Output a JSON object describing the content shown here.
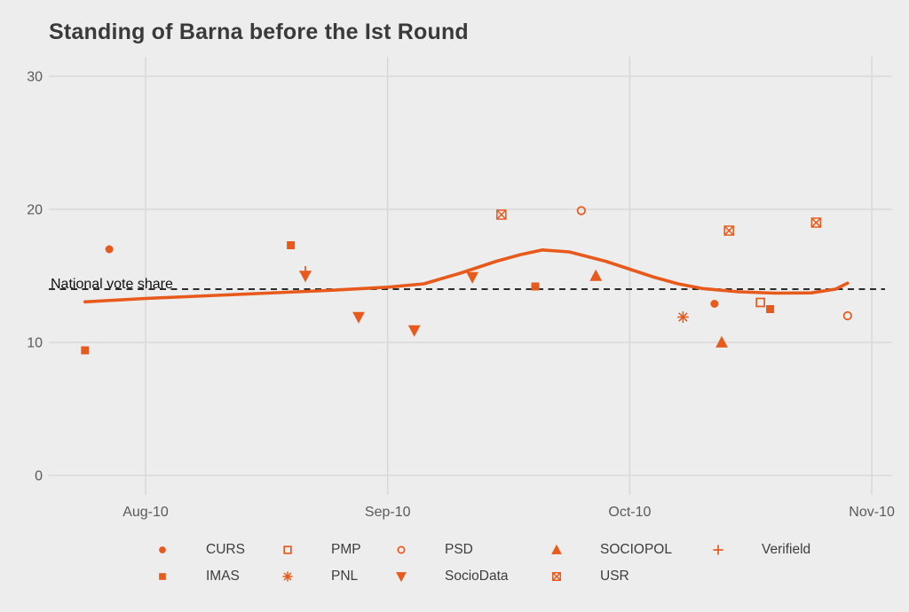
{
  "title": "Standing of Barna before the Ist Round",
  "accent_color": "#E8591C",
  "background_color": "#EDEDED",
  "gridline_color": "#D9D9D9",
  "axis_text_color": "#5A5A5A",
  "chart_data": {
    "type": "scatter",
    "title": "Standing of Barna before the Ist Round",
    "xlabel": "",
    "ylabel": "",
    "x_unit": "months (0 = Aug-10 tick)",
    "x_ticks": {
      "labels": [
        "Aug-10",
        "Sep-10",
        "Oct-10",
        "Nov-10"
      ],
      "positions": [
        0,
        1,
        2,
        3
      ]
    },
    "y_ticks": [
      0,
      10,
      20,
      30
    ],
    "ylim": [
      0,
      31
    ],
    "xlim": [
      -0.4,
      3.1
    ],
    "grid": true,
    "legend_position": "bottom",
    "reference_line": {
      "label": "National vote share",
      "value": 14,
      "style": "dashed",
      "color": "#111111"
    },
    "series": [
      {
        "name": "CURS",
        "marker": "circle-filled",
        "points": [
          [
            -0.15,
            17.0
          ],
          [
            2.35,
            12.9
          ]
        ]
      },
      {
        "name": "IMAS",
        "marker": "square-filled",
        "points": [
          [
            -0.25,
            9.4
          ],
          [
            0.6,
            17.3
          ],
          [
            1.61,
            14.2
          ],
          [
            2.58,
            12.5
          ]
        ]
      },
      {
        "name": "PMP",
        "marker": "square-open",
        "points": [
          [
            2.54,
            13.0
          ]
        ]
      },
      {
        "name": "PNL",
        "marker": "asterisk",
        "points": [
          [
            2.22,
            11.9
          ]
        ]
      },
      {
        "name": "PSD",
        "marker": "circle-open",
        "points": [
          [
            1.8,
            19.9
          ],
          [
            2.9,
            12.0
          ]
        ]
      },
      {
        "name": "SocioData",
        "marker": "triangle-down-filled",
        "points": [
          [
            0.66,
            15.0
          ],
          [
            0.88,
            11.9
          ],
          [
            1.11,
            10.9
          ],
          [
            1.35,
            14.9
          ]
        ]
      },
      {
        "name": "SOCIOPOL",
        "marker": "triangle-up-filled",
        "points": [
          [
            1.86,
            15.0
          ],
          [
            2.38,
            10.0
          ]
        ]
      },
      {
        "name": "USR",
        "marker": "square-x",
        "points": [
          [
            1.47,
            19.6
          ],
          [
            2.41,
            18.4
          ],
          [
            2.77,
            19.0
          ]
        ]
      },
      {
        "name": "Verifield",
        "marker": "plus",
        "points": [
          [
            0.66,
            15.3
          ]
        ]
      }
    ],
    "trend_line": {
      "description": "loess smooth of all polls",
      "color": "#E8591C",
      "points": [
        [
          -0.25,
          13.05
        ],
        [
          0.0,
          13.3
        ],
        [
          0.25,
          13.5
        ],
        [
          0.5,
          13.7
        ],
        [
          0.75,
          13.9
        ],
        [
          1.0,
          14.15
        ],
        [
          1.15,
          14.4
        ],
        [
          1.3,
          15.2
        ],
        [
          1.45,
          16.1
        ],
        [
          1.55,
          16.6
        ],
        [
          1.64,
          16.95
        ],
        [
          1.75,
          16.8
        ],
        [
          1.9,
          16.1
        ],
        [
          2.0,
          15.5
        ],
        [
          2.1,
          14.9
        ],
        [
          2.2,
          14.4
        ],
        [
          2.3,
          14.05
        ],
        [
          2.45,
          13.8
        ],
        [
          2.6,
          13.7
        ],
        [
          2.75,
          13.72
        ],
        [
          2.85,
          14.0
        ],
        [
          2.9,
          14.45
        ]
      ]
    },
    "legend_rows": [
      [
        "CURS",
        "PMP",
        "PSD",
        "SOCIOPOL",
        "Verifield"
      ],
      [
        "IMAS",
        "PNL",
        "SocioData",
        "USR"
      ]
    ]
  }
}
